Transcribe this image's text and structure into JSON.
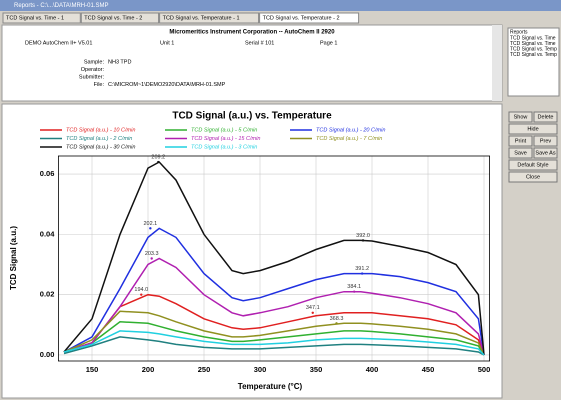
{
  "window": {
    "title": "Reports - C:\\...\\DATA\\MRH-01.SMP",
    "tabs": [
      "TCD Signal vs. Time - 1",
      "TCD Signal vs. Time - 2",
      "TCD Signal vs. Temperature - 1",
      "TCD Signal vs. Temperature - 2"
    ]
  },
  "header": {
    "company": "Micromeritics Instrument Corporation -- AutoChem II 2920",
    "software": "DEMO AutoChem II+ V5.01",
    "unit": "Unit 1",
    "serial": "Serial # 101",
    "page": "Page 1",
    "fields": [
      {
        "label": "Sample:",
        "value": "NH3 TPD"
      },
      {
        "label": "Operator:",
        "value": ""
      },
      {
        "label": "Submitter:",
        "value": ""
      },
      {
        "label": "File:",
        "value": "C:\\MICROM~1\\DEMO2920\\DATA\\MRH-01.SMP"
      }
    ]
  },
  "sidebar": {
    "list_title": "Reports",
    "items": [
      "TCD Signal vs. Time",
      "TCD Signal vs. Time",
      "TCD Signal vs. Temp",
      "TCD Signal vs. Temp"
    ],
    "buttons": [
      [
        "Show",
        "Delete"
      ],
      [
        "Hide"
      ],
      [
        "Print",
        "Prev"
      ],
      [
        "Save",
        "Save As"
      ],
      [
        "Default Style"
      ],
      [
        "Close"
      ]
    ]
  },
  "chart_data": {
    "type": "line",
    "title": "TCD Signal (a.u.) vs. Temperature",
    "x_label": "Temperature (°C)",
    "y_label": "TCD Signal (a.u.)",
    "xlim": [
      120,
      505
    ],
    "xticks": [
      150,
      200,
      250,
      300,
      350,
      400,
      450,
      500
    ],
    "ylim": [
      -0.002,
      0.066
    ],
    "yticks": [
      {
        "value": 0,
        "label": "0.00"
      },
      {
        "value": 0.02,
        "label": "0.02"
      },
      {
        "value": 0.04,
        "label": "0.04"
      },
      {
        "value": 0.06,
        "label": "0.06"
      }
    ],
    "grid": true,
    "x": [
      125,
      150,
      175,
      200,
      210,
      225,
      250,
      275,
      285,
      300,
      325,
      350,
      375,
      390,
      400,
      425,
      450,
      475,
      495,
      500
    ],
    "series": [
      {
        "name": "TCD Signal (a.u.) - 10 C/min",
        "color": "#e02020",
        "values": [
          0.001,
          0.004,
          0.016,
          0.02,
          0.0195,
          0.017,
          0.012,
          0.009,
          0.0085,
          0.009,
          0.011,
          0.013,
          0.014,
          0.014,
          0.014,
          0.013,
          0.012,
          0.01,
          0.005,
          0
        ],
        "peaks": [
          {
            "x": {
              "value": 194,
              "label": "194.0"
            },
            "y": 0.02
          },
          {
            "x": 347.1,
            "y": 0.014
          }
        ]
      },
      {
        "name": "TCD Signal (a.u.) - 5 C/min",
        "color": "#30b030",
        "values": [
          0.001,
          0.004,
          0.011,
          0.0105,
          0.0095,
          0.008,
          0.006,
          0.0045,
          0.0045,
          0.005,
          0.006,
          0.007,
          0.008,
          0.008,
          0.0078,
          0.007,
          0.006,
          0.005,
          0.003,
          0
        ],
        "peaks": []
      },
      {
        "name": "TCD Signal (a.u.) - 20 C/min",
        "color": "#2030e0",
        "values": [
          0.001,
          0.006,
          0.022,
          0.039,
          0.042,
          0.039,
          0.027,
          0.019,
          0.018,
          0.019,
          0.022,
          0.025,
          0.027,
          0.027,
          0.027,
          0.026,
          0.024,
          0.021,
          0.012,
          0
        ],
        "peaks": [
          {
            "x": 202.1,
            "y": 0.042
          },
          {
            "x": 391.2,
            "y": 0.027
          }
        ]
      },
      {
        "name": "TCD Signal (a.u.) - 2 C/min",
        "color": "#208080",
        "values": [
          0.0005,
          0.003,
          0.006,
          0.005,
          0.0045,
          0.0035,
          0.0025,
          0.002,
          0.002,
          0.002,
          0.0025,
          0.003,
          0.0035,
          0.0035,
          0.0034,
          0.003,
          0.0025,
          0.002,
          0.001,
          0
        ],
        "peaks": []
      },
      {
        "name": "TCD Signal (a.u.) - 15 C/min",
        "color": "#b020b0",
        "values": [
          0.001,
          0.004,
          0.016,
          0.03,
          0.032,
          0.029,
          0.02,
          0.014,
          0.013,
          0.014,
          0.016,
          0.019,
          0.021,
          0.021,
          0.0205,
          0.019,
          0.017,
          0.014,
          0.007,
          0
        ],
        "peaks": [
          {
            "x": 203.3,
            "y": 0.032
          },
          {
            "x": 384.1,
            "y": 0.021
          }
        ]
      },
      {
        "name": "TCD Signal (a.u.) - 7 C/min",
        "color": "#909020",
        "values": [
          0.001,
          0.005,
          0.0145,
          0.014,
          0.013,
          0.011,
          0.008,
          0.006,
          0.006,
          0.0065,
          0.008,
          0.0095,
          0.0105,
          0.0105,
          0.0103,
          0.0095,
          0.0085,
          0.007,
          0.004,
          0
        ],
        "peaks": [
          {
            "x": 368.3,
            "y": 0.0105
          }
        ]
      },
      {
        "name": "TCD Signal (a.u.) - 30 C/min",
        "color": "#111111",
        "values": [
          0.001,
          0.012,
          0.04,
          0.062,
          0.064,
          0.058,
          0.04,
          0.028,
          0.027,
          0.028,
          0.031,
          0.035,
          0.038,
          0.038,
          0.0378,
          0.036,
          0.034,
          0.03,
          0.02,
          0
        ],
        "peaks": [
          {
            "x": 209.2,
            "y": 0.064
          },
          {
            "x": {
              "value": 392,
              "label": "392.0"
            },
            "y": 0.038
          }
        ]
      },
      {
        "name": "TCD Signal (a.u.) - 3 C/min",
        "color": "#20d0e0",
        "values": [
          0.001,
          0.0035,
          0.008,
          0.0075,
          0.007,
          0.006,
          0.0045,
          0.0035,
          0.0035,
          0.0035,
          0.004,
          0.005,
          0.0055,
          0.0055,
          0.0054,
          0.005,
          0.0043,
          0.0035,
          0.002,
          0
        ],
        "peaks": []
      }
    ]
  }
}
